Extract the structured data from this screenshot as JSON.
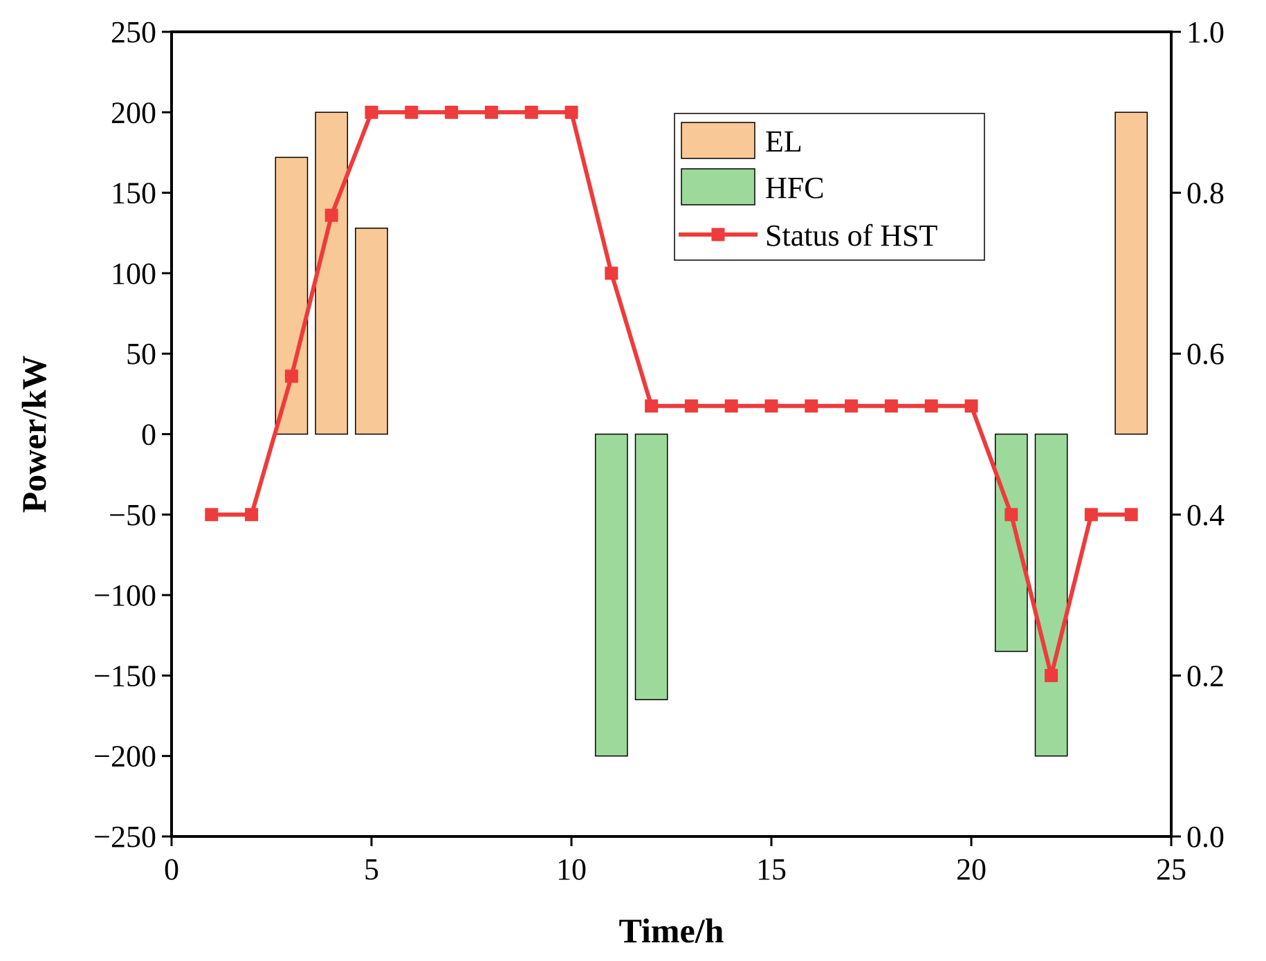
{
  "chart_data": {
    "type": "bar+line",
    "xlabel": "Time/h",
    "ylabel": "Power/kW",
    "xlim": [
      0,
      25
    ],
    "ylim": [
      -250,
      250
    ],
    "y2lim": [
      0.0,
      1.0
    ],
    "x_ticks": [
      "0",
      "5",
      "10",
      "15",
      "20",
      "25"
    ],
    "y_ticks": [
      "250",
      "200",
      "150",
      "100",
      "50",
      "0",
      "-50",
      "-100",
      "-150",
      "-200",
      "-250"
    ],
    "y2_ticks": [
      "1.0",
      "0.8",
      "0.6",
      "0.4",
      "0.2",
      "0.0"
    ],
    "legend_position": "top-right",
    "colors": {
      "el": "#f9c897",
      "hfc": "#9dd99b",
      "line": "#ee3b3b",
      "axis": "#000000"
    },
    "series": [
      {
        "name": "EL",
        "kind": "bar",
        "axis": "left",
        "points": [
          [
            3,
            172
          ],
          [
            4,
            200
          ],
          [
            5,
            128
          ],
          [
            24,
            200
          ]
        ]
      },
      {
        "name": "HFC",
        "kind": "bar",
        "axis": "left",
        "points": [
          [
            11,
            -200
          ],
          [
            12,
            -165
          ],
          [
            21,
            -135
          ],
          [
            22,
            -200
          ]
        ]
      },
      {
        "name": "Status of HST",
        "kind": "line",
        "axis": "right",
        "x": [
          1,
          2,
          3,
          4,
          5,
          6,
          7,
          8,
          9,
          10,
          11,
          12,
          13,
          14,
          15,
          16,
          17,
          18,
          19,
          20,
          21,
          22,
          23,
          24
        ],
        "values": [
          0.4,
          0.4,
          0.572,
          0.772,
          0.9,
          0.9,
          0.9,
          0.9,
          0.9,
          0.9,
          0.7,
          0.535,
          0.535,
          0.535,
          0.535,
          0.535,
          0.535,
          0.535,
          0.535,
          0.535,
          0.4,
          0.2,
          0.4,
          0.4
        ]
      }
    ]
  }
}
